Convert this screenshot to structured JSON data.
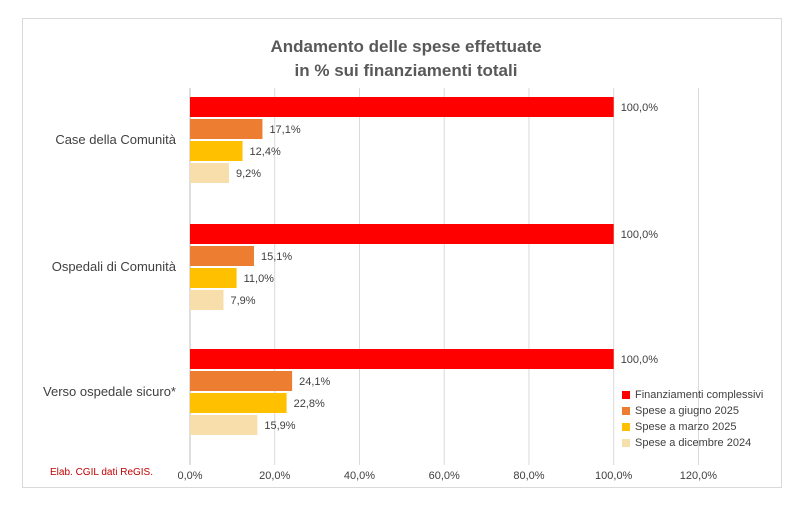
{
  "chart_data": {
    "type": "bar",
    "orientation": "horizontal",
    "title": "Andamento delle spese effettuate",
    "subtitle": "in % sui finanziamenti totali",
    "categories": [
      "Case della Comunità",
      "Ospedali di Comunità",
      "Verso ospedale sicuro*"
    ],
    "series": [
      {
        "name": "Finanziamenti complessivi",
        "color": "#ff0000",
        "values": [
          100.0,
          100.0,
          100.0
        ],
        "labels": [
          "100,0%",
          "100,0%",
          "100,0%"
        ]
      },
      {
        "name": "Spese a giugno 2025",
        "color": "#ed7d31",
        "values": [
          17.1,
          15.1,
          24.1
        ],
        "labels": [
          "17,1%",
          "15,1%",
          "24,1%"
        ]
      },
      {
        "name": "Spese a marzo 2025",
        "color": "#ffc000",
        "values": [
          12.4,
          11.0,
          22.8
        ],
        "labels": [
          "12,4%",
          "11,0%",
          "22,8%"
        ]
      },
      {
        "name": "Spese a dicembre 2024",
        "color": "#f7deab",
        "values": [
          9.2,
          7.9,
          15.9
        ],
        "labels": [
          "9,2%",
          "7,9%",
          "15,9%"
        ]
      }
    ],
    "xlim": [
      0,
      120
    ],
    "xticks": [
      0,
      20,
      40,
      60,
      80,
      100,
      120
    ],
    "xtick_labels": [
      "0,0%",
      "20,0%",
      "40,0%",
      "60,0%",
      "80,0%",
      "100,0%",
      "120,0%"
    ],
    "grid": true,
    "legend_position": "bottom-right",
    "source_note": "Elab. CGIL dati ReGIS."
  }
}
